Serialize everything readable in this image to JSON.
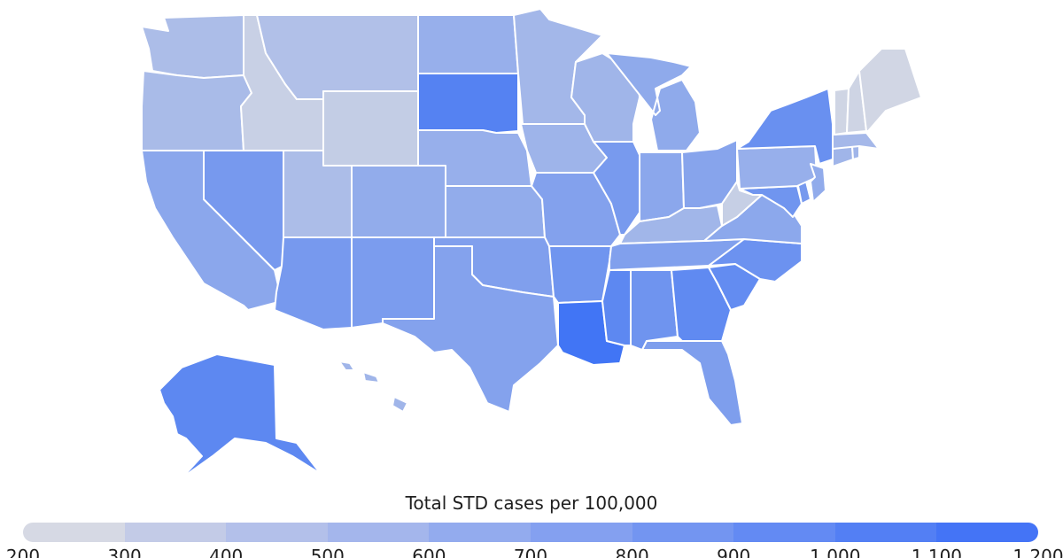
{
  "map": {
    "legend_title": "Total STD cases per 100,000",
    "scale_min": 200,
    "scale_max": 1200,
    "color_low": "#d7dae3",
    "color_high": "#3e73f5",
    "ticks": [
      "200",
      "300",
      "400",
      "500",
      "600",
      "700",
      "800",
      "900",
      "1,000",
      "1,100",
      "1,200"
    ],
    "segment_colors": [
      "#d6d9e4",
      "#c3cbe7",
      "#b3c0ea",
      "#a4b6ec",
      "#93abee",
      "#84a0f0",
      "#7395f1",
      "#638af3",
      "#537ff4",
      "#4474f6"
    ],
    "states": [
      {
        "id": "WA",
        "value": 480
      },
      {
        "id": "OR",
        "value": 500
      },
      {
        "id": "CA",
        "value": 700
      },
      {
        "id": "NV",
        "value": 830
      },
      {
        "id": "ID",
        "value": 300
      },
      {
        "id": "MT",
        "value": 450
      },
      {
        "id": "WY",
        "value": 330
      },
      {
        "id": "UT",
        "value": 480
      },
      {
        "id": "CO",
        "value": 650
      },
      {
        "id": "AZ",
        "value": 830
      },
      {
        "id": "NM",
        "value": 800
      },
      {
        "id": "ND",
        "value": 620
      },
      {
        "id": "SD",
        "value": 1050
      },
      {
        "id": "NE",
        "value": 620
      },
      {
        "id": "KS",
        "value": 650
      },
      {
        "id": "OK",
        "value": 770
      },
      {
        "id": "TX",
        "value": 740
      },
      {
        "id": "MN",
        "value": 540
      },
      {
        "id": "IA",
        "value": 570
      },
      {
        "id": "MO",
        "value": 750
      },
      {
        "id": "AR",
        "value": 870
      },
      {
        "id": "LA",
        "value": 1180
      },
      {
        "id": "WI",
        "value": 560
      },
      {
        "id": "IL",
        "value": 820
      },
      {
        "id": "MI",
        "value": 670
      },
      {
        "id": "IN",
        "value": 700
      },
      {
        "id": "OH",
        "value": 720
      },
      {
        "id": "KY",
        "value": 550
      },
      {
        "id": "TN",
        "value": 760
      },
      {
        "id": "MS",
        "value": 1000
      },
      {
        "id": "AL",
        "value": 880
      },
      {
        "id": "GA",
        "value": 980
      },
      {
        "id": "FL",
        "value": 780
      },
      {
        "id": "SC",
        "value": 960
      },
      {
        "id": "NC",
        "value": 900
      },
      {
        "id": "VA",
        "value": 690
      },
      {
        "id": "WV",
        "value": 310
      },
      {
        "id": "MD",
        "value": 870
      },
      {
        "id": "DE",
        "value": 830
      },
      {
        "id": "PA",
        "value": 620
      },
      {
        "id": "NJ",
        "value": 660
      },
      {
        "id": "NY",
        "value": 920
      },
      {
        "id": "CT",
        "value": 560
      },
      {
        "id": "RI",
        "value": 560
      },
      {
        "id": "MA",
        "value": 530
      },
      {
        "id": "VT",
        "value": 250
      },
      {
        "id": "NH",
        "value": 260
      },
      {
        "id": "ME",
        "value": 240
      },
      {
        "id": "AK",
        "value": 1000
      },
      {
        "id": "HI",
        "value": 560
      }
    ]
  }
}
